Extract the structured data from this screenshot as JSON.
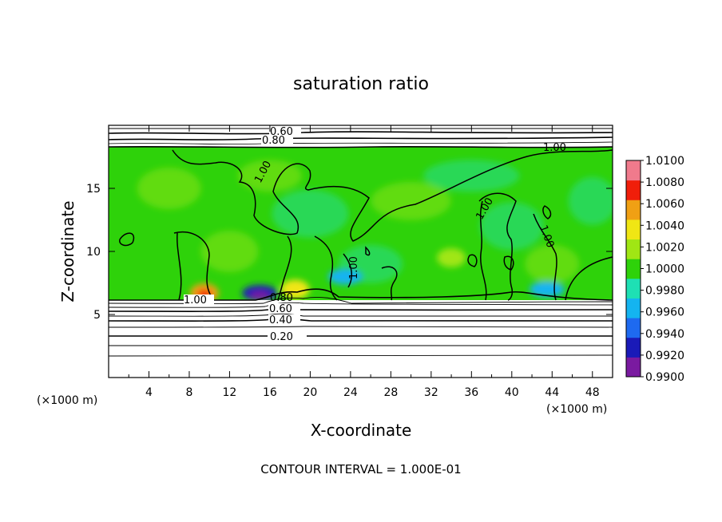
{
  "chart_data": {
    "type": "heatmap",
    "title": "saturation ratio",
    "xlabel": "X-coordinate",
    "ylabel": "Z-coordinate",
    "x_units": "(×1000 m)",
    "y_units": "(×1000 m)",
    "xlim": [
      0,
      50
    ],
    "ylim": [
      0,
      20
    ],
    "x_ticks": [
      4,
      8,
      12,
      16,
      20,
      24,
      28,
      32,
      36,
      40,
      44,
      48
    ],
    "x_tick_labels": [
      "4",
      "8",
      "12",
      "16",
      "20",
      "24",
      "28",
      "32",
      "36",
      "40",
      "44",
      "48"
    ],
    "y_ticks": [
      5,
      10,
      15
    ],
    "y_tick_labels": [
      "5",
      "10",
      "15"
    ],
    "footer": "CONTOUR INTERVAL = 1.000E-01",
    "colorbar": {
      "levels": [
        0.99,
        0.992,
        0.994,
        0.996,
        0.998,
        1.0,
        1.002,
        1.004,
        1.006,
        1.008,
        1.01
      ],
      "labels": [
        "0.9900",
        "0.9920",
        "0.9940",
        "0.9960",
        "0.9980",
        "1.0000",
        "1.0020",
        "1.0040",
        "1.0060",
        "1.0080",
        "1.0100"
      ],
      "colors": [
        "#7a1aa0",
        "#1a1ab8",
        "#1e6af0",
        "#14b4f0",
        "#1ee0b4",
        "#2ed20a",
        "#a0e614",
        "#f0e614",
        "#f0a014",
        "#f01e0a",
        "#f07a8c"
      ]
    },
    "contours": [
      {
        "label": "0.60",
        "value": 0.6
      },
      {
        "label": "0.80",
        "value": 0.8
      },
      {
        "label": "1.00",
        "value": 1.0
      },
      {
        "label": "0.40",
        "value": 0.4
      },
      {
        "label": "0.20",
        "value": 0.2
      }
    ],
    "lower_boundary_z": 6.3,
    "upper_boundary_z": 18.2,
    "warm_spots": [
      {
        "x": 9.5,
        "z": 6.7,
        "level": "1.0060"
      },
      {
        "x": 18.5,
        "z": 7.0,
        "level": "1.0040"
      },
      {
        "x": 34.0,
        "z": 9.5,
        "level": "1.0020"
      }
    ],
    "cool_spots": [
      {
        "x": 15.0,
        "z": 6.7,
        "level": "0.9920"
      },
      {
        "x": 23.5,
        "z": 8.0,
        "level": "0.9960"
      },
      {
        "x": 43.5,
        "z": 7.0,
        "level": "0.9960"
      }
    ]
  }
}
